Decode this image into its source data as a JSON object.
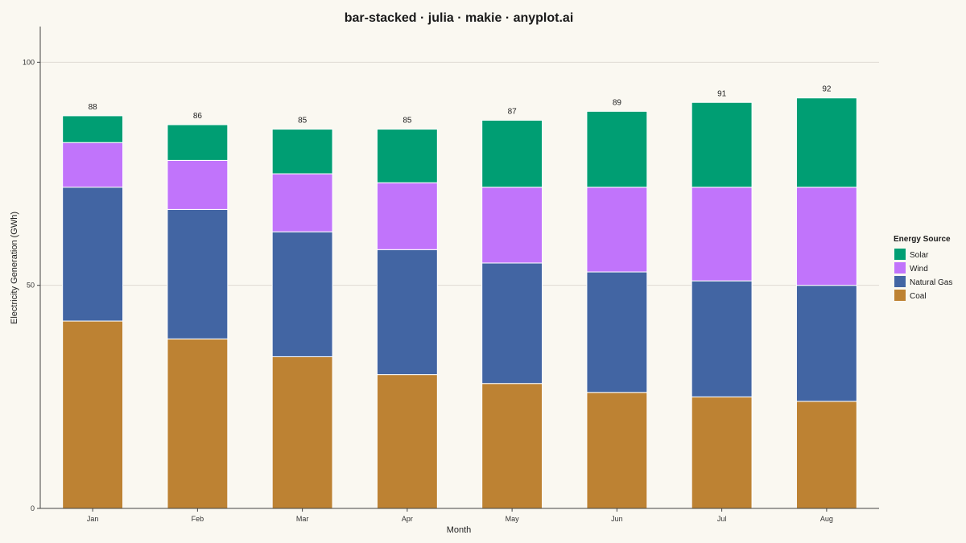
{
  "chart_data": {
    "type": "bar",
    "stacked": true,
    "title": "bar-stacked · julia · makie · anyplot.ai",
    "xlabel": "Month",
    "ylabel": "Electricity Generation (GWh)",
    "categories": [
      "Jan",
      "Feb",
      "Mar",
      "Apr",
      "May",
      "Jun",
      "Jul",
      "Aug"
    ],
    "ylim": [
      0,
      108
    ],
    "yticks": [
      0,
      50,
      100
    ],
    "grid": true,
    "legend": {
      "title": "Energy Source",
      "placement": "right",
      "entries": [
        "Solar",
        "Wind",
        "Natural Gas",
        "Coal"
      ]
    },
    "series": [
      {
        "name": "Coal",
        "color": "#BD8233",
        "values": [
          42,
          38,
          34,
          30,
          28,
          26,
          25,
          24
        ]
      },
      {
        "name": "Natural Gas",
        "color": "#4265A3",
        "values": [
          30,
          29,
          28,
          28,
          27,
          27,
          26,
          26
        ]
      },
      {
        "name": "Wind",
        "color": "#C174FB",
        "values": [
          10,
          11,
          13,
          15,
          17,
          19,
          21,
          22
        ]
      },
      {
        "name": "Solar",
        "color": "#009E73",
        "values": [
          6,
          8,
          10,
          12,
          15,
          17,
          19,
          20
        ]
      }
    ],
    "totals": [
      88,
      86,
      85,
      85,
      87,
      89,
      91,
      92
    ]
  }
}
